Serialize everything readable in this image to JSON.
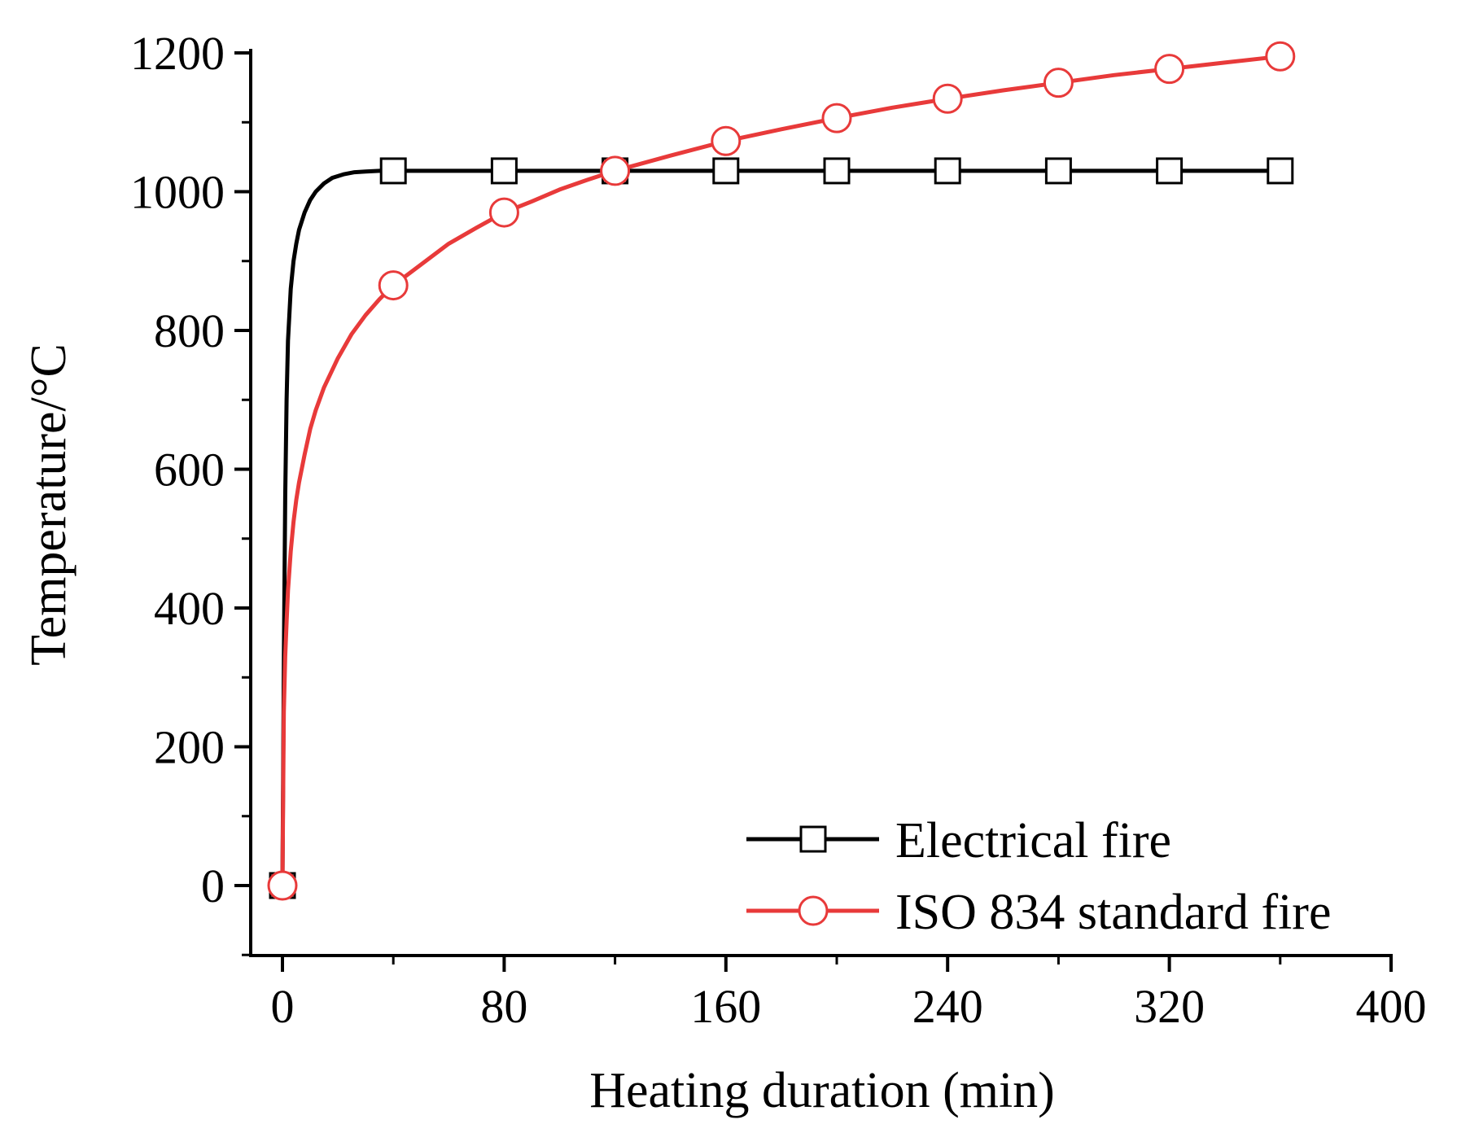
{
  "chart_data": {
    "type": "line",
    "xlabel": "Heating duration (min)",
    "ylabel": "Temperature/°C",
    "xlim": [
      -5,
      400
    ],
    "ylim": [
      -100,
      1200
    ],
    "x_ticks": [
      0,
      80,
      160,
      240,
      320,
      400
    ],
    "y_ticks": [
      0,
      200,
      400,
      600,
      800,
      1000,
      1200
    ],
    "grid": false,
    "legend_position": "bottom-right",
    "series": [
      {
        "name": "Electrical fire",
        "color": "#000000",
        "marker": "square",
        "marker_x": [
          0,
          40,
          80,
          120,
          160,
          200,
          240,
          280,
          320,
          360
        ],
        "marker_y": [
          0,
          1030,
          1030,
          1030,
          1030,
          1030,
          1030,
          1030,
          1030,
          1030
        ],
        "x": [
          0,
          0.5,
          1,
          1.5,
          2,
          3,
          4,
          5,
          6,
          8,
          10,
          12,
          15,
          18,
          22,
          26,
          30,
          35,
          40,
          80,
          120,
          160,
          200,
          240,
          280,
          320,
          360
        ],
        "y": [
          0,
          320,
          560,
          700,
          785,
          860,
          900,
          925,
          945,
          970,
          988,
          1000,
          1012,
          1020,
          1025,
          1028,
          1029,
          1030,
          1030,
          1030,
          1030,
          1030,
          1030,
          1030,
          1030,
          1030,
          1030
        ]
      },
      {
        "name": "ISO 834 standard fire",
        "color": "#e83a3a",
        "marker": "circle",
        "marker_x": [
          0,
          40,
          80,
          120,
          160,
          200,
          240,
          280,
          320,
          360
        ],
        "marker_y": [
          0,
          865,
          970,
          1030,
          1073,
          1106,
          1134,
          1157,
          1177,
          1195
        ],
        "x": [
          0,
          0.5,
          1,
          1.5,
          2,
          3,
          4,
          5,
          6,
          8,
          10,
          12,
          15,
          20,
          25,
          30,
          35,
          40,
          50,
          60,
          70,
          80,
          90,
          100,
          110,
          120,
          140,
          160,
          180,
          200,
          220,
          240,
          260,
          280,
          300,
          320,
          340,
          360
        ],
        "y": [
          0,
          250,
          330,
          380,
          425,
          482,
          524,
          556,
          581,
          621,
          658,
          685,
          718,
          760,
          795,
          822,
          845,
          865,
          895,
          925,
          948,
          970,
          986,
          1003,
          1017,
          1030,
          1052,
          1073,
          1090,
          1106,
          1121,
          1134,
          1146,
          1157,
          1168,
          1177,
          1186,
          1195
        ]
      }
    ]
  }
}
